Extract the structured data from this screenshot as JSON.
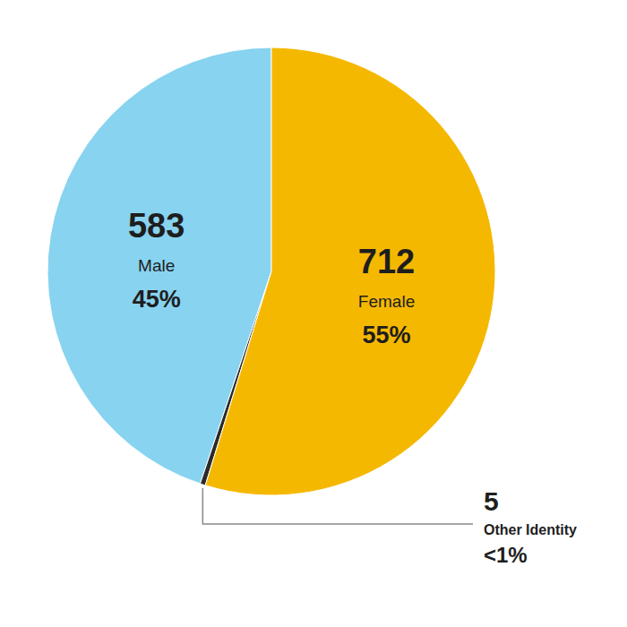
{
  "chart_data": {
    "type": "pie",
    "categories": [
      "Male",
      "Other Identity",
      "Female"
    ],
    "values": [
      583,
      5,
      712
    ],
    "percent_labels": [
      "45%",
      "<1%",
      "55%"
    ],
    "colors": [
      "#87D3F0",
      "#2a2a2a",
      "#F5B800"
    ],
    "data_labels": true,
    "legend": false
  }
}
